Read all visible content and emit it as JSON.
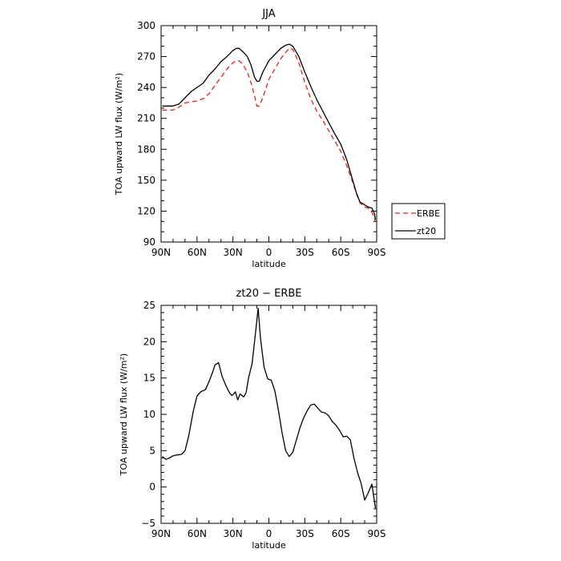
{
  "chart_data": [
    {
      "type": "line",
      "title": "JJA",
      "xlabel": "latitude",
      "ylabel": "TOA upward LW flux (W/m²)",
      "xlim": [
        90,
        -90
      ],
      "ylim": [
        90,
        300
      ],
      "x_ticks": [
        90,
        60,
        30,
        0,
        -30,
        -60,
        -90
      ],
      "x_tick_labels": [
        "90N",
        "60N",
        "30N",
        "0",
        "30S",
        "60S",
        "90S"
      ],
      "y_ticks": [
        90,
        120,
        150,
        180,
        210,
        240,
        270,
        300
      ],
      "y_tick_labels": [
        "90",
        "120",
        "150",
        "180",
        "210",
        "240",
        "270",
        "300"
      ],
      "legend_position": "right",
      "series": [
        {
          "name": "ERBE",
          "color": "#e8201a",
          "dash": "dashed",
          "x": [
            89,
            85,
            80,
            75,
            70,
            65,
            60,
            55,
            50,
            45,
            40,
            35,
            30,
            27,
            25,
            22,
            18,
            15,
            12,
            10,
            8,
            5,
            0,
            -5,
            -10,
            -14,
            -17,
            -20,
            -25,
            -30,
            -35,
            -40,
            -45,
            -50,
            -55,
            -60,
            -65,
            -70,
            -73,
            -76,
            -80,
            -83,
            -86,
            -88,
            -89
          ],
          "y": [
            218,
            218,
            218,
            221,
            225,
            226,
            227,
            229,
            234,
            242,
            250,
            258,
            264,
            266,
            266,
            263,
            255,
            245,
            232,
            222,
            222,
            230,
            248,
            258,
            268,
            274,
            278,
            277,
            264,
            245,
            229,
            217,
            208,
            198,
            188,
            178,
            164,
            148,
            137,
            128,
            124,
            123,
            119,
            113,
            110
          ]
        },
        {
          "name": "zt20",
          "color": "#000000",
          "dash": "solid",
          "x": [
            89,
            85,
            80,
            75,
            70,
            65,
            60,
            55,
            50,
            45,
            40,
            35,
            30,
            27,
            25,
            22,
            18,
            15,
            12,
            10,
            8,
            5,
            0,
            -5,
            -10,
            -14,
            -17,
            -20,
            -25,
            -30,
            -35,
            -40,
            -45,
            -50,
            -55,
            -60,
            -65,
            -70,
            -73,
            -76,
            -80,
            -83,
            -86,
            -88,
            -89
          ],
          "y": [
            222,
            222,
            222,
            224,
            230,
            236,
            240,
            244,
            252,
            258,
            265,
            270,
            276,
            278,
            278,
            275,
            270,
            262,
            250,
            246,
            246,
            255,
            266,
            272,
            278,
            281,
            282,
            280,
            270,
            255,
            241,
            228,
            217,
            206,
            195,
            185,
            170,
            150,
            138,
            129,
            126,
            124,
            123,
            118,
            112
          ]
        }
      ]
    },
    {
      "type": "line",
      "title": "zt20 − ERBE",
      "xlabel": "latitude",
      "ylabel": "TOA upward LW flux (W/m²)",
      "xlim": [
        90,
        -90
      ],
      "ylim": [
        -5,
        25
      ],
      "x_ticks": [
        90,
        60,
        30,
        0,
        -30,
        -60,
        -90
      ],
      "x_tick_labels": [
        "90N",
        "60N",
        "30N",
        "0",
        "30S",
        "60S",
        "90S"
      ],
      "y_ticks": [
        -5,
        0,
        5,
        10,
        15,
        20,
        25
      ],
      "y_tick_labels": [
        "−5",
        "0",
        "5",
        "10",
        "15",
        "20",
        "25"
      ],
      "series": [
        {
          "color": "#000000",
          "dash": "solid",
          "x": [
            89,
            86,
            83,
            80,
            77,
            73,
            70,
            67,
            63,
            60,
            57,
            53,
            50,
            47,
            45,
            42,
            39,
            36,
            33,
            31,
            30,
            28,
            26,
            24,
            21,
            19,
            17,
            14,
            11,
            9,
            7,
            4,
            1,
            -2,
            -5,
            -8,
            -11,
            -14,
            -17,
            -20,
            -23,
            -26,
            -29,
            -32,
            -35,
            -38,
            -41,
            -44,
            -47,
            -50,
            -53,
            -56,
            -59,
            -62,
            -65,
            -68,
            -71,
            -74,
            -77,
            -80,
            -83,
            -86,
            -89
          ],
          "y": [
            4.2,
            3.8,
            4.0,
            4.3,
            4.4,
            4.5,
            5.0,
            7.0,
            10.5,
            12.5,
            13.1,
            13.4,
            14.5,
            15.8,
            16.8,
            17.1,
            15.2,
            14.0,
            13.0,
            12.6,
            12.7,
            13.1,
            12.0,
            12.8,
            12.4,
            13.0,
            15.0,
            17.0,
            21.5,
            24.6,
            20.5,
            16.5,
            14.9,
            14.7,
            13.2,
            10.5,
            7.5,
            5.0,
            4.2,
            4.8,
            6.5,
            8.2,
            9.5,
            10.5,
            11.3,
            11.4,
            10.8,
            10.3,
            10.2,
            9.8,
            9.0,
            8.5,
            7.8,
            6.9,
            7.0,
            6.5,
            4.0,
            2.0,
            0.5,
            -1.8,
            -0.8,
            0.4,
            -2.9
          ]
        }
      ]
    }
  ]
}
